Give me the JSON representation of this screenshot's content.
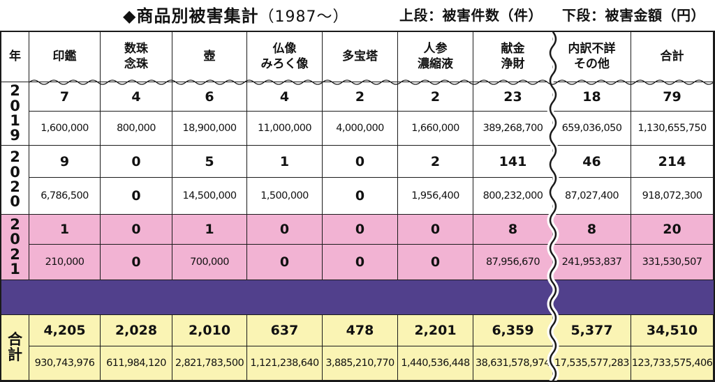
{
  "title": "◆商品別被害集計",
  "title_paren": "（1987～）",
  "subtitle_upper": "上段：被害件数（件）",
  "subtitle_lower": "下段：被害金額（円）",
  "header": {
    "year": "年",
    "columns": [
      "印鑑",
      "数珠\n念珠",
      "壺",
      "仏像\nみろく像",
      "多宝塔",
      "人参\n濃縮液",
      "献金\n浄財",
      "内訳不詳\nその他",
      "合計"
    ]
  },
  "rows": [
    {
      "year": "2\n0\n1\n9",
      "counts": [
        "7",
        "4",
        "6",
        "4",
        "2",
        "2",
        "23",
        "18",
        "79"
      ],
      "amounts": [
        "1,600,000",
        "800,000",
        "18,900,000",
        "11,000,000",
        "4,000,000",
        "1,660,000",
        "389,268,700",
        "659,036,050",
        "1,130,655,750"
      ]
    },
    {
      "year": "2\n0\n2\n0",
      "counts": [
        "9",
        "0",
        "5",
        "1",
        "0",
        "2",
        "141",
        "46",
        "214"
      ],
      "amounts": [
        "6,786,500",
        "0",
        "14,500,000",
        "1,500,000",
        "0",
        "1,956,400",
        "800,232,000",
        "87,027,400",
        "918,072,300"
      ]
    },
    {
      "year": "2\n0\n2\n1",
      "counts": [
        "1",
        "0",
        "1",
        "0",
        "0",
        "0",
        "8",
        "8",
        "20"
      ],
      "amounts": [
        "210,000",
        "0",
        "700,000",
        "0",
        "0",
        "0",
        "87,956,670",
        "241,953,837",
        "331,530,507"
      ]
    }
  ],
  "total": {
    "label": "合\n計",
    "counts": [
      "4,205",
      "2,028",
      "2,010",
      "637",
      "478",
      "2,201",
      "6,359",
      "5,377",
      "34,510"
    ],
    "amounts": [
      "930,743,976",
      "611,984,120",
      "2,821,783,500",
      "1,121,238,640",
      "3,885,210,770",
      "1,440,536,448",
      "38,631,578,974",
      "17,535,577,283",
      "123,733,575,406"
    ]
  },
  "colors": {
    "highlight_row": "#f2b3d3",
    "omitted_band": "#51408c",
    "total_row": "#faf4b4",
    "grid": "#1a1a1a"
  }
}
